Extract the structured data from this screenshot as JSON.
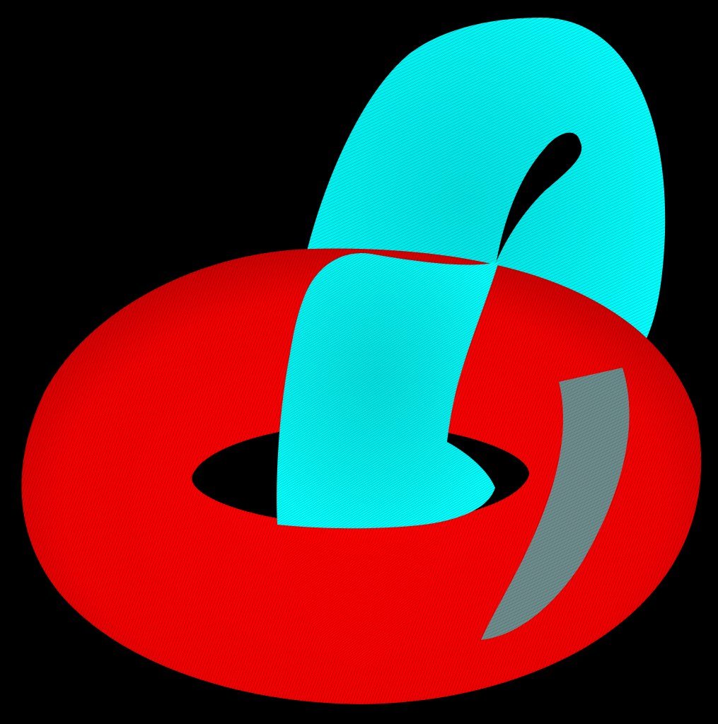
{
  "scene": {
    "background_color": "#000000",
    "tori": [
      {
        "name": "red-torus",
        "color": "#ff0000",
        "render_style": "wireframe-mesh",
        "orientation": "horizontal"
      },
      {
        "name": "cyan-torus",
        "color": "#00ffff",
        "render_style": "wireframe-mesh",
        "orientation": "tilted-vertical",
        "interlocked_with": "red-torus"
      }
    ]
  }
}
